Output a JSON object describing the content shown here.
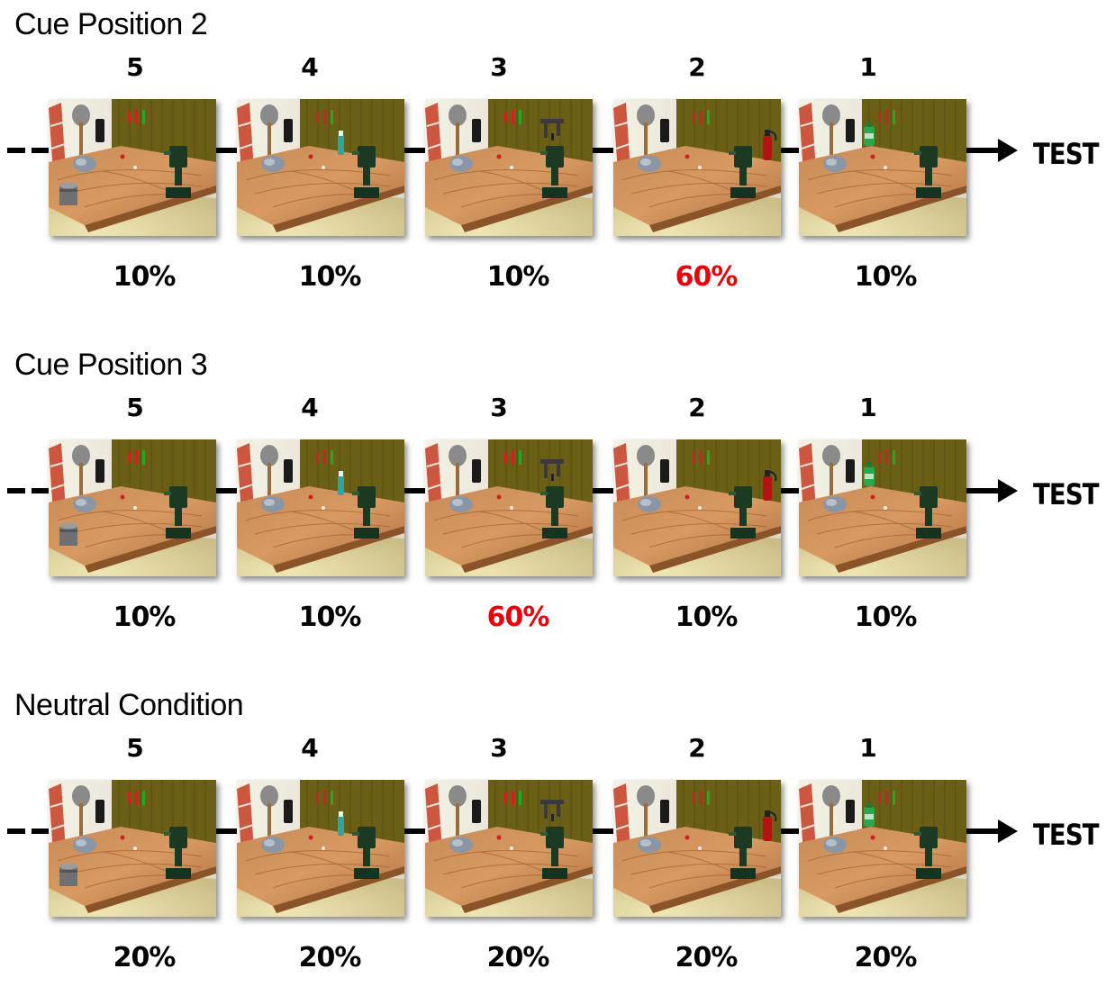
{
  "panels": [
    {
      "title": "Cue Position 2",
      "positions": [
        "5",
        "4",
        "3",
        "2",
        "1"
      ],
      "probabilities": [
        "10%",
        "10%",
        "10%",
        "60%",
        "10%"
      ],
      "highlight_index": 3,
      "end_label": "TEST"
    },
    {
      "title": "Cue Position 3",
      "positions": [
        "5",
        "4",
        "3",
        "2",
        "1"
      ],
      "probabilities": [
        "10%",
        "10%",
        "60%",
        "10%",
        "10%"
      ],
      "highlight_index": 2,
      "end_label": "TEST"
    },
    {
      "title": "Neutral Condition",
      "positions": [
        "5",
        "4",
        "3",
        "2",
        "1"
      ],
      "probabilities": [
        "20%",
        "20%",
        "20%",
        "20%",
        "20%"
      ],
      "highlight_index": -1,
      "end_label": "TEST"
    }
  ],
  "colors": {
    "highlight": "#e8000b",
    "normal": "#000000"
  },
  "image_objects": [
    "paint-can",
    "spray-bottle",
    "hand-clamp",
    "fire-extinguisher",
    "green-bottle"
  ]
}
